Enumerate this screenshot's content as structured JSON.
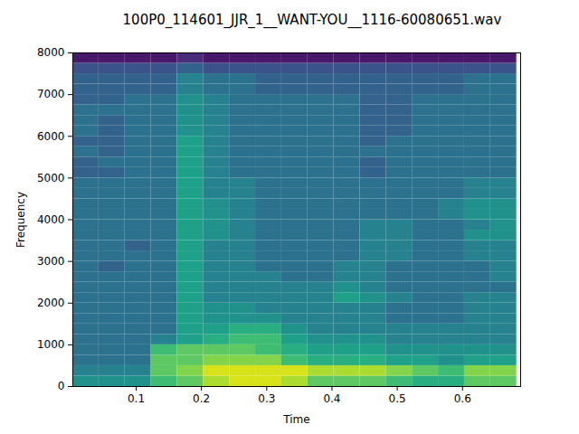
{
  "chart_data": {
    "type": "heatmap",
    "title": "100P0_114601_JJR_1__WANT-YOU__1116-60080651.wav",
    "xlabel": "Time",
    "ylabel": "Frequency",
    "xlim": [
      0.003,
      0.689
    ],
    "ylim": [
      0,
      8000
    ],
    "xticks": [
      0.1,
      0.2,
      0.3,
      0.4,
      0.5,
      0.6
    ],
    "yticks": [
      0,
      1000,
      2000,
      3000,
      4000,
      5000,
      6000,
      7000,
      8000
    ],
    "color": "viridis",
    "color_range": [
      2,
      10
    ],
    "time_edges": [
      0.003,
      0.043,
      0.083,
      0.123,
      0.163,
      0.203,
      0.243,
      0.283,
      0.323,
      0.363,
      0.403,
      0.443,
      0.483,
      0.523,
      0.563,
      0.603,
      0.643,
      0.683
    ],
    "freq_edges": [
      0,
      250,
      500,
      750,
      1000,
      1250,
      1500,
      1750,
      2000,
      2250,
      2500,
      2750,
      3000,
      3250,
      3500,
      3750,
      4000,
      4250,
      4500,
      4750,
      5000,
      5250,
      5500,
      5750,
      6000,
      6250,
      6500,
      6750,
      7000,
      7250,
      7500,
      7750,
      8000
    ],
    "cells": [
      [
        6,
        6,
        6,
        7.5,
        8,
        9,
        9.5,
        9.5,
        9,
        8,
        8,
        8,
        7.5,
        7,
        7,
        8,
        8
      ],
      [
        5.5,
        5.5,
        5.5,
        8,
        8.5,
        9.5,
        9.5,
        9.5,
        9.5,
        9,
        9,
        9,
        8.5,
        8,
        7.5,
        8.5,
        8.5
      ],
      [
        5,
        5,
        5,
        8,
        8,
        8.5,
        8.5,
        8.5,
        7.5,
        7,
        7,
        7,
        6.5,
        6.5,
        6,
        6.5,
        6.5
      ],
      [
        5,
        5,
        5,
        7.5,
        8,
        8,
        8,
        7.5,
        7,
        6.5,
        6.5,
        6.5,
        6,
        6,
        6,
        6,
        6
      ],
      [
        5,
        5,
        5,
        5.5,
        6.5,
        7,
        7.5,
        7.5,
        6.5,
        6,
        6,
        6,
        5.5,
        5.5,
        5.5,
        5.5,
        5.5
      ],
      [
        5,
        5,
        5,
        5,
        6.5,
        6.5,
        7,
        7,
        6,
        5.5,
        5.5,
        5.5,
        5.5,
        5.5,
        5.5,
        5.5,
        5.5
      ],
      [
        5,
        5,
        5,
        5,
        6.5,
        6,
        6,
        6,
        5.5,
        5.5,
        5.5,
        5.5,
        5,
        5,
        5,
        5.5,
        5.5
      ],
      [
        5,
        5,
        5,
        5,
        6.5,
        6,
        6,
        5.5,
        5.5,
        5.5,
        5.5,
        5.5,
        5,
        5,
        5,
        5.5,
        5.5
      ],
      [
        5,
        5,
        5,
        5,
        6.5,
        5.5,
        5.5,
        5.5,
        5.5,
        5.5,
        6.5,
        6,
        5.5,
        5,
        5,
        5.5,
        5.5
      ],
      [
        5,
        5,
        5,
        5,
        6.5,
        5.5,
        5.5,
        5.5,
        5.5,
        5.5,
        6,
        5.5,
        5,
        5,
        5,
        5,
        5
      ],
      [
        5,
        5,
        5,
        5,
        6.5,
        5.5,
        5.5,
        5.5,
        5,
        5,
        5.5,
        5.5,
        5,
        5,
        5,
        5,
        5.5
      ],
      [
        5,
        4.5,
        5,
        5,
        6.5,
        5.5,
        5.5,
        5,
        5,
        5,
        5.5,
        5.5,
        5,
        5,
        5,
        5,
        5.5
      ],
      [
        5,
        5,
        5,
        5,
        6.5,
        5.5,
        5.5,
        5,
        5,
        5,
        5,
        5.5,
        5.5,
        5,
        5,
        5.5,
        5.5
      ],
      [
        5,
        5,
        4.5,
        5,
        6.5,
        5.5,
        5.5,
        5,
        5,
        5,
        5,
        5.5,
        5.5,
        5,
        5,
        5.5,
        5.5
      ],
      [
        5,
        5,
        5,
        5,
        6.5,
        6,
        5.5,
        5,
        5,
        5,
        5,
        5.5,
        5.5,
        5,
        5,
        6,
        6
      ],
      [
        5,
        5,
        5,
        5,
        6.5,
        6,
        5.5,
        5,
        5,
        5,
        5,
        5.5,
        5.5,
        5,
        5,
        5.5,
        6
      ],
      [
        5,
        5,
        5,
        5,
        6.5,
        6,
        5.5,
        5,
        5,
        5,
        5,
        5,
        5,
        5,
        5.5,
        6,
        6
      ],
      [
        5,
        5,
        5,
        5,
        6.5,
        6,
        5.5,
        5,
        5,
        5,
        5,
        5,
        5,
        5,
        5.5,
        6,
        6
      ],
      [
        5,
        5,
        5,
        5,
        6.5,
        5.5,
        5.5,
        5,
        5,
        5,
        5,
        5,
        5,
        5,
        5,
        5.5,
        5.5
      ],
      [
        5,
        5,
        5,
        5,
        6.5,
        5.5,
        5.5,
        5,
        5,
        5,
        5,
        5,
        5,
        5,
        5,
        5.5,
        5.5
      ],
      [
        4.5,
        4.5,
        5,
        5,
        6.5,
        5.5,
        5,
        5,
        5,
        5,
        5,
        4.5,
        5,
        5,
        5,
        5,
        5
      ],
      [
        4.5,
        5,
        5,
        5,
        6.5,
        5.5,
        5,
        5,
        5,
        5,
        5,
        4.5,
        5,
        5,
        5,
        5,
        5
      ],
      [
        5,
        4.5,
        5,
        5,
        6.5,
        5.5,
        5,
        5,
        5,
        5,
        5,
        5,
        5,
        5,
        5,
        5,
        5
      ],
      [
        4.5,
        4.5,
        5,
        5,
        6.5,
        5.5,
        5,
        5,
        5,
        5,
        5,
        4.5,
        5,
        5,
        5,
        5,
        5
      ],
      [
        5,
        4.5,
        5,
        5,
        6,
        5.5,
        5,
        5,
        5,
        5,
        5,
        4.5,
        4.5,
        5,
        5,
        5,
        5
      ],
      [
        5,
        4.5,
        5,
        5,
        6,
        5.5,
        5,
        5,
        5,
        5,
        5,
        4.5,
        4.5,
        5,
        5,
        5,
        5
      ],
      [
        5,
        5,
        5,
        5,
        6,
        5.5,
        5,
        5,
        5,
        5,
        5,
        4.5,
        4.5,
        5,
        5,
        5,
        5
      ],
      [
        4.5,
        4.5,
        5,
        5,
        6,
        5.5,
        5,
        5,
        5,
        5,
        5,
        4.5,
        4.5,
        5,
        5,
        5,
        5
      ],
      [
        4.5,
        4.5,
        4.5,
        4.5,
        5.5,
        5,
        5,
        4.5,
        4.5,
        4.5,
        4.5,
        4.5,
        4.5,
        4.5,
        4.5,
        5,
        5
      ],
      [
        4.5,
        4.5,
        4.5,
        4.5,
        5.5,
        5,
        5,
        4.5,
        4.5,
        4.5,
        4.5,
        4.5,
        4.5,
        4.5,
        4.5,
        5,
        5
      ],
      [
        4,
        4,
        4,
        4,
        4.5,
        4,
        4,
        4,
        4,
        4,
        4,
        4,
        4,
        4,
        4,
        4,
        4
      ],
      [
        2.5,
        2.5,
        2.5,
        2.5,
        3,
        2.5,
        2.5,
        2.5,
        2.5,
        2.5,
        2.5,
        2.5,
        2.5,
        2.5,
        2.5,
        2.5,
        2.5
      ]
    ]
  }
}
